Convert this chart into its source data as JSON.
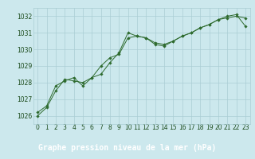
{
  "background_color": "#cce8ed",
  "plot_bg_color": "#cce8ed",
  "bottom_bar_color": "#2d6a2d",
  "grid_color": "#aacdd4",
  "line_color": "#2d6a2d",
  "marker_color": "#2d6a2d",
  "xlabel": "Graphe pression niveau de la mer (hPa)",
  "xlabel_color": "#ffffff",
  "xlabel_fontsize": 7,
  "tick_label_color": "#1a4a1a",
  "tick_fontsize": 5.5,
  "ylim": [
    1025.5,
    1032.5
  ],
  "xlim": [
    -0.5,
    23.5
  ],
  "yticks": [
    1026,
    1027,
    1028,
    1029,
    1030,
    1031,
    1032
  ],
  "xticks": [
    0,
    1,
    2,
    3,
    4,
    5,
    6,
    7,
    8,
    9,
    10,
    11,
    12,
    13,
    14,
    15,
    16,
    17,
    18,
    19,
    20,
    21,
    22,
    23
  ],
  "series1_x": [
    0,
    1,
    2,
    3,
    4,
    5,
    6,
    7,
    8,
    9,
    10,
    11,
    12,
    13,
    14,
    15,
    16,
    17,
    18,
    19,
    20,
    21,
    22,
    23
  ],
  "series1_y": [
    1026.2,
    1026.6,
    1027.8,
    1028.1,
    1028.3,
    1027.8,
    1028.3,
    1029.0,
    1029.5,
    1029.7,
    1030.7,
    1030.8,
    1030.7,
    1030.3,
    1030.2,
    1030.5,
    1030.8,
    1031.0,
    1031.3,
    1031.5,
    1031.8,
    1031.9,
    1032.0,
    1031.9
  ],
  "series2_x": [
    0,
    1,
    2,
    3,
    4,
    5,
    6,
    7,
    8,
    9,
    10,
    11,
    12,
    13,
    14,
    15,
    16,
    17,
    18,
    19,
    20,
    21,
    22,
    23
  ],
  "series2_y": [
    1026.0,
    1026.5,
    1027.5,
    1028.2,
    1028.1,
    1028.0,
    1028.3,
    1028.5,
    1029.2,
    1029.8,
    1031.0,
    1030.8,
    1030.7,
    1030.4,
    1030.3,
    1030.5,
    1030.8,
    1031.0,
    1031.3,
    1031.5,
    1031.8,
    1032.0,
    1032.1,
    1031.4
  ]
}
